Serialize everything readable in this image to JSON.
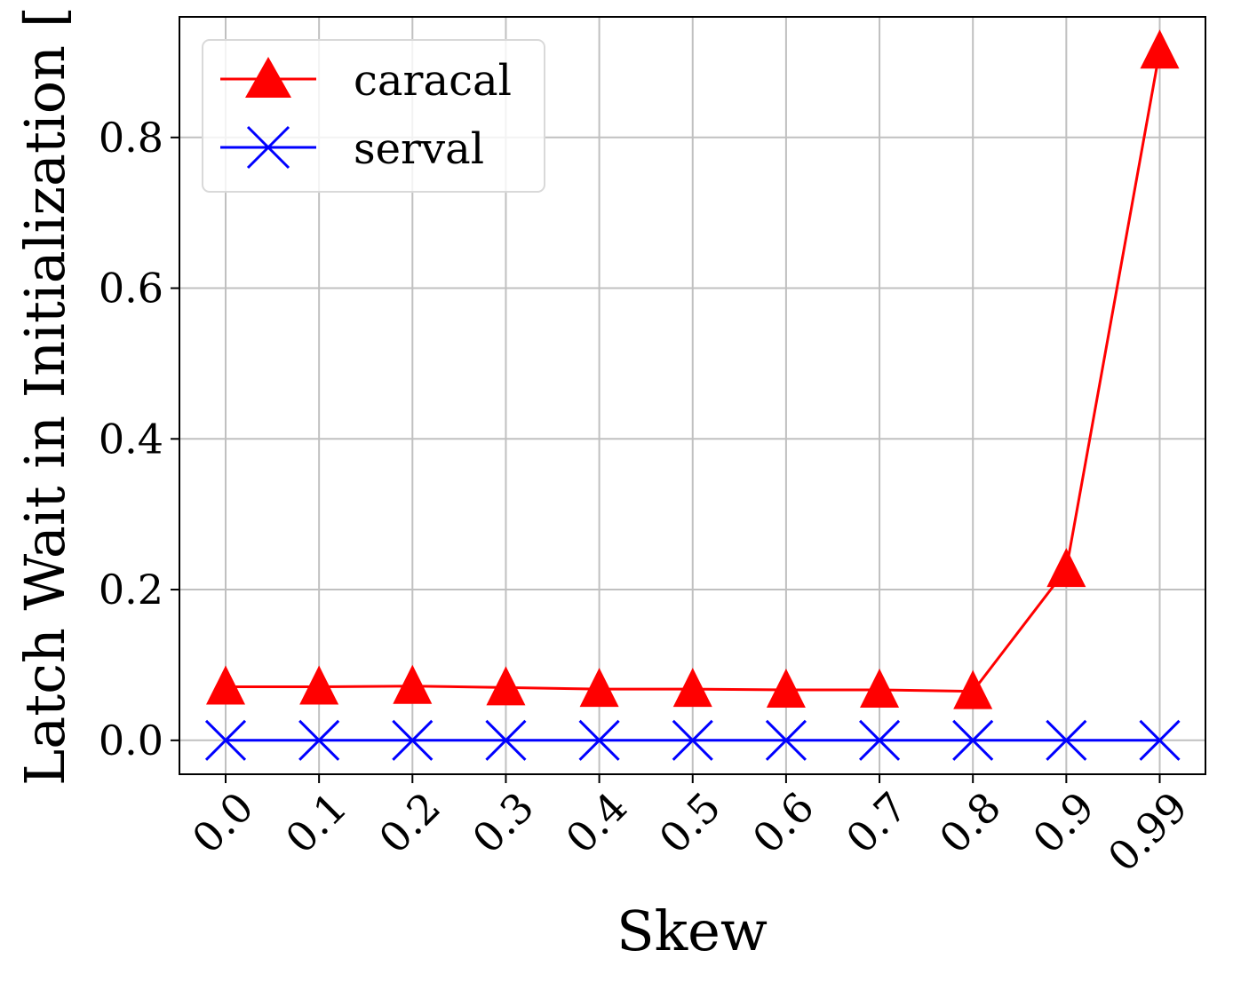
{
  "chart_data": {
    "type": "line",
    "x_categories": [
      "0.0",
      "0.1",
      "0.2",
      "0.3",
      "0.4",
      "0.5",
      "0.6",
      "0.7",
      "0.8",
      "0.9",
      "0.99"
    ],
    "series": [
      {
        "name": "caracal",
        "color": "#ff0000",
        "marker": "triangle-up",
        "values": [
          0.071,
          0.071,
          0.072,
          0.07,
          0.068,
          0.068,
          0.067,
          0.067,
          0.065,
          0.227,
          0.915
        ]
      },
      {
        "name": "serval",
        "color": "#0000ff",
        "marker": "x",
        "values": [
          0.0,
          0.0,
          0.0,
          0.0,
          0.0,
          0.0,
          0.0,
          0.0,
          0.0,
          0.0,
          0.0
        ]
      }
    ],
    "xlabel": "Skew",
    "ylabel": "Latch Wait in Initialization [",
    "ylim": [
      -0.045,
      0.96
    ],
    "yticks": [
      0.0,
      0.2,
      0.4,
      0.6,
      0.8
    ],
    "ytick_labels": [
      "0.0",
      "0.2",
      "0.4",
      "0.6",
      "0.8"
    ],
    "grid": true,
    "legend_position": "upper-left"
  }
}
